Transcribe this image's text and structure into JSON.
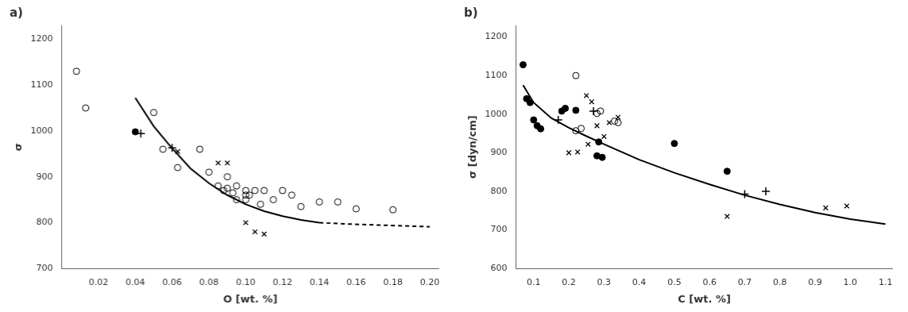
{
  "chart_data": [
    {
      "type": "scatter",
      "title": "a)",
      "xlabel": "O [wt. %]",
      "ylabel": "σ",
      "xlim": [
        0.0,
        0.205
      ],
      "ylim": [
        700,
        1230
      ],
      "xticks": [
        0.02,
        0.04,
        0.06,
        0.08,
        {
          "value": 0.1,
          "label": "0.10"
        },
        0.12,
        0.14,
        0.16,
        0.18,
        {
          "value": 0.2,
          "label": "0.20"
        }
      ],
      "yticks": [
        700,
        800,
        900,
        1000,
        1100,
        1200
      ],
      "grid": false,
      "series": [
        {
          "type": "scatter",
          "marker": "open_circle",
          "color": "#000000",
          "x": [
            0.008,
            0.013,
            0.05,
            0.055,
            0.063,
            0.075,
            0.08,
            0.085,
            0.088,
            0.09,
            0.09,
            0.093,
            0.095,
            0.095,
            0.1,
            0.1,
            0.1,
            0.102,
            0.105,
            0.108,
            0.11,
            0.115,
            0.12,
            0.125,
            0.13,
            0.14,
            0.15,
            0.16,
            0.18
          ],
          "values": [
            1130,
            1050,
            1040,
            960,
            920,
            960,
            910,
            880,
            870,
            875,
            900,
            865,
            850,
            880,
            870,
            860,
            850,
            860,
            870,
            840,
            870,
            850,
            870,
            860,
            835,
            845,
            845,
            830,
            828
          ]
        },
        {
          "type": "scatter",
          "marker": "circle",
          "color": "#000000",
          "x": [
            0.04
          ],
          "values": [
            998
          ]
        },
        {
          "type": "scatter",
          "marker": "plus",
          "color": "#000000",
          "x": [
            0.043,
            0.06
          ],
          "values": [
            994,
            963
          ]
        },
        {
          "type": "scatter",
          "marker": "cross",
          "color": "#000000",
          "x": [
            0.063,
            0.085,
            0.09,
            0.1,
            0.105,
            0.11
          ],
          "values": [
            955,
            930,
            930,
            800,
            780,
            775
          ]
        },
        {
          "type": "line",
          "line_style": "solid",
          "color": "#000000",
          "x": [
            0.04,
            0.05,
            0.06,
            0.07,
            0.08,
            0.09,
            0.1,
            0.11,
            0.12,
            0.13,
            0.14
          ],
          "values": [
            1072,
            1010,
            962,
            918,
            886,
            860,
            840,
            825,
            814,
            806,
            800
          ]
        },
        {
          "type": "line",
          "line_style": "dashed",
          "color": "#000000",
          "x": [
            0.14,
            0.155,
            0.17,
            0.185,
            0.2
          ],
          "values": [
            800,
            797,
            795,
            793,
            791
          ]
        }
      ]
    },
    {
      "type": "scatter",
      "title": "b)",
      "xlabel": "C [wt. %]",
      "ylabel": "σ [dyn/cm]",
      "xlim": [
        0.05,
        1.12
      ],
      "ylim": [
        600,
        1230
      ],
      "xticks": [
        0.1,
        0.2,
        0.3,
        0.4,
        0.5,
        0.6,
        0.7,
        0.8,
        0.9,
        {
          "value": 1.0,
          "label": "1.0"
        },
        1.1
      ],
      "yticks": [
        600,
        700,
        800,
        900,
        1000,
        1100,
        1200
      ],
      "grid": false,
      "series": [
        {
          "type": "scatter",
          "marker": "open_circle",
          "color": "#000000",
          "x": [
            0.22,
            0.22,
            0.235,
            0.28,
            0.29,
            0.33,
            0.34
          ],
          "values": [
            1100,
            957,
            963,
            1002,
            1008,
            982,
            978
          ]
        },
        {
          "type": "scatter",
          "marker": "circle",
          "color": "#000000",
          "x": [
            0.07,
            0.08,
            0.09,
            0.1,
            0.11,
            0.12,
            0.18,
            0.19,
            0.22,
            0.28,
            0.285,
            0.295,
            0.5,
            0.65
          ],
          "values": [
            1128,
            1040,
            1030,
            985,
            970,
            962,
            1008,
            1015,
            1010,
            892,
            928,
            888,
            924,
            852
          ]
        },
        {
          "type": "scatter",
          "marker": "plus",
          "color": "#000000",
          "x": [
            0.17,
            0.27,
            0.7,
            0.76
          ],
          "values": [
            985,
            1008,
            793,
            800
          ]
        },
        {
          "type": "scatter",
          "marker": "cross",
          "color": "#000000",
          "x": [
            0.25,
            0.265,
            0.2,
            0.225,
            0.255,
            0.28,
            0.3,
            0.315,
            0.34,
            0.65,
            0.93,
            0.99
          ],
          "values": [
            1048,
            1032,
            900,
            902,
            922,
            970,
            942,
            978,
            992,
            735,
            757,
            762
          ]
        },
        {
          "type": "line",
          "line_style": "solid",
          "color": "#000000",
          "x": [
            0.07,
            0.1,
            0.15,
            0.2,
            0.25,
            0.3,
            0.35,
            0.4,
            0.5,
            0.6,
            0.7,
            0.8,
            0.9,
            1.0,
            1.1
          ],
          "values": [
            1075,
            1030,
            990,
            965,
            943,
            922,
            902,
            882,
            848,
            818,
            790,
            766,
            745,
            728,
            715
          ]
        }
      ]
    }
  ]
}
